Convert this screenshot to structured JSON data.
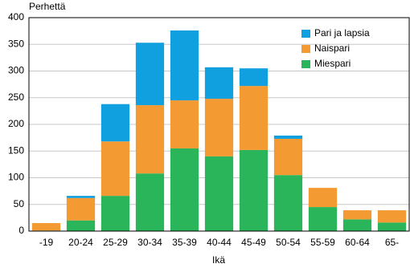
{
  "chart_data": {
    "type": "bar",
    "stacked": true,
    "y_label": "Perhettä",
    "x_label": "Ikä",
    "categories": [
      "-19",
      "20-24",
      "25-29",
      "30-34",
      "35-39",
      "40-44",
      "45-49",
      "50-54",
      "55-59",
      "60-64",
      "65-"
    ],
    "series": [
      {
        "name": "Miespari",
        "color": "#2ab55a",
        "values": [
          1,
          20,
          66,
          108,
          155,
          140,
          152,
          105,
          45,
          22,
          16
        ]
      },
      {
        "name": "Naispari",
        "color": "#f39a32",
        "values": [
          14,
          42,
          102,
          128,
          90,
          108,
          120,
          68,
          36,
          17,
          23
        ]
      },
      {
        "name": "Pari ja lapsia",
        "color": "#10a0e0",
        "values": [
          0,
          4,
          70,
          117,
          131,
          59,
          33,
          6,
          0,
          0,
          0
        ]
      }
    ],
    "ylim": [
      0,
      400
    ],
    "yticks": [
      0,
      50,
      100,
      150,
      200,
      250,
      300,
      350,
      400
    ],
    "grid": true
  }
}
